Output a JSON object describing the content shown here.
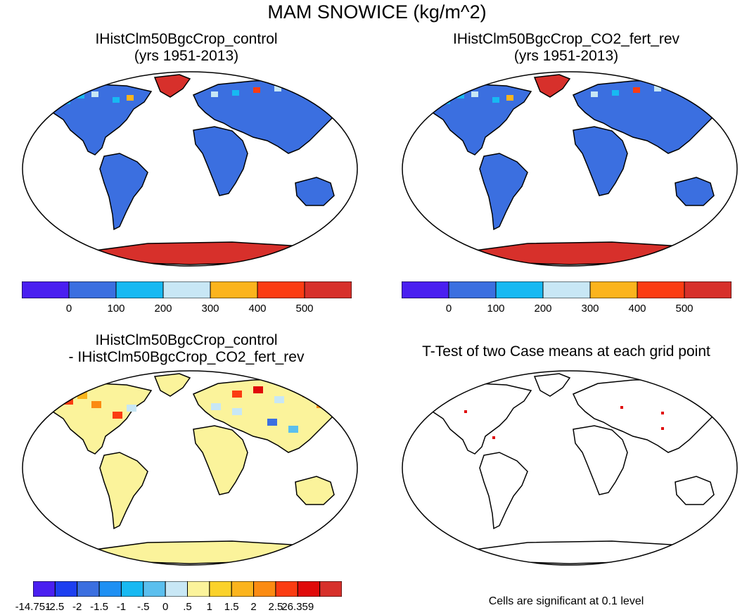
{
  "main_title": "MAM SNOWICE (kg/m^2)",
  "panels": [
    {
      "title_line1": "IHistClm50BgcCrop_control",
      "title_line2": "(yrs 1951-2013)",
      "land_color": "#3b6fe0",
      "ice_color": "#d7302b"
    },
    {
      "title_line1": "IHistClm50BgcCrop_CO2_fert_rev",
      "title_line2": "(yrs 1951-2013)",
      "land_color": "#3b6fe0",
      "ice_color": "#d7302b"
    },
    {
      "title_line1": "IHistClm50BgcCrop_control",
      "title_line2": "- IHistClm50BgcCrop_CO2_fert_rev",
      "land_color": "#fbf39b",
      "ice_color": "#fbf39b"
    },
    {
      "title_line1": "T-Test of two Case means at each grid point",
      "title_line2": "",
      "land_color": "#ffffff",
      "ice_color": "#ffffff"
    }
  ],
  "colorbar_top": {
    "colors": [
      "#4a1ff0",
      "#3b6fe0",
      "#17b9f2",
      "#c8e7f5",
      "#fbb41d",
      "#fb3c12",
      "#d7302b"
    ],
    "labels": [
      "0",
      "100",
      "200",
      "300",
      "400",
      "500"
    ]
  },
  "colorbar_diff": {
    "colors": [
      "#4a1ff0",
      "#1d3ff0",
      "#3b6fe0",
      "#1e90f3",
      "#17b9f2",
      "#5bbfee",
      "#c8e7f5",
      "#fbf39b",
      "#fbd22a",
      "#fbb41d",
      "#fb8b12",
      "#fb3c12",
      "#e00a0a",
      "#d7302b"
    ],
    "labels": [
      "-14.751",
      "-2.5",
      "-2",
      "-1.5",
      "-1",
      "-.5",
      "0",
      ".5",
      "1",
      "1.5",
      "2",
      "2.5",
      "26.359"
    ]
  },
  "ttest_note": "Cells are significant at 0.1 level"
}
